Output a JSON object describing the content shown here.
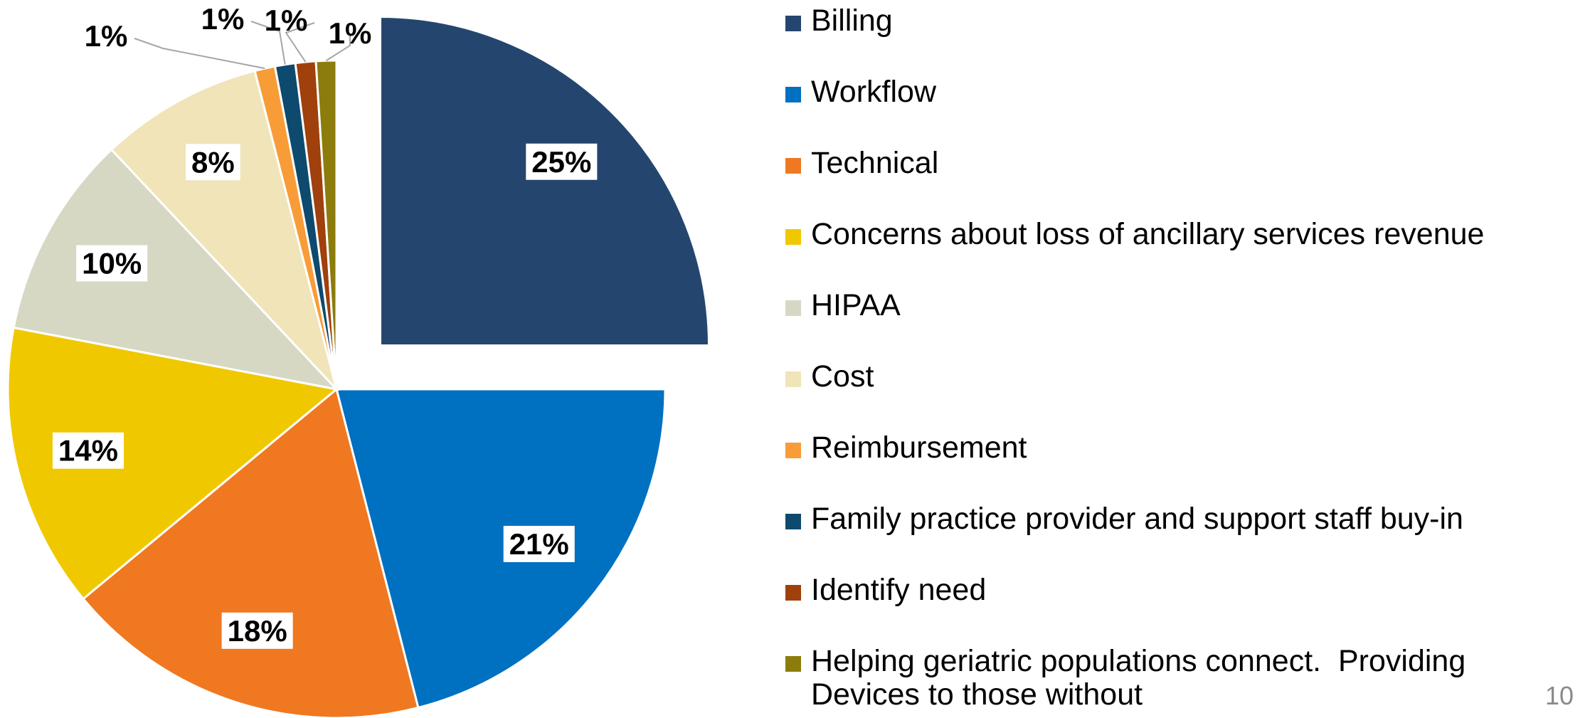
{
  "chart_data": {
    "type": "pie",
    "categories": [
      "Billing",
      "Workflow",
      "Technical",
      "Concerns about loss of ancillary services revenue",
      "HIPAA",
      "Cost",
      "Reimbursement",
      "Family practice provider and support staff buy-in",
      "Identify need",
      "Helping geriatric populations connect.  Providing Devices to those without"
    ],
    "values": [
      25,
      21,
      18,
      14,
      10,
      8,
      1,
      1,
      1,
      1
    ],
    "value_labels": [
      "25%",
      "21%",
      "18%",
      "14%",
      "10%",
      "8%",
      "1%",
      "1%",
      "1%",
      "1%"
    ],
    "colors": [
      "#24466e",
      "#0070c0",
      "#f07820",
      "#f0c800",
      "#d6d8c4",
      "#f0e4b8",
      "#f89c38",
      "#0d4a6e",
      "#a0400c",
      "#8c7c0c"
    ],
    "exploded": [
      0
    ],
    "legend": "right"
  },
  "page_number": "10"
}
